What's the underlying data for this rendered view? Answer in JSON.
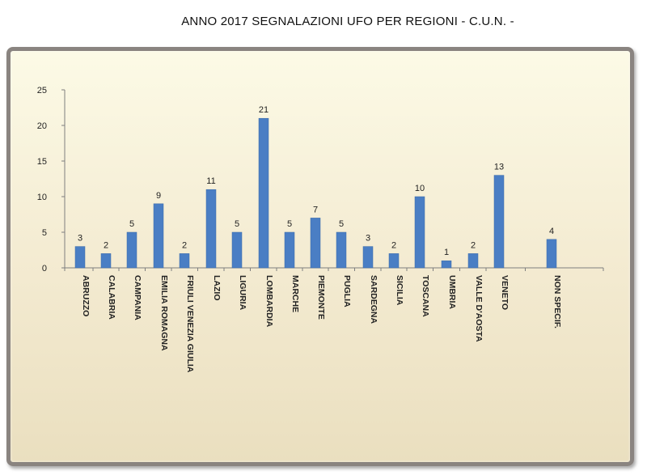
{
  "chart_data": {
    "type": "bar",
    "title": "ANNO 2017 SEGNALAZIONI UFO PER REGIONI - C.U.N. -",
    "xlabel": "",
    "ylabel": "",
    "ylim": [
      0,
      25
    ],
    "yticks": [
      "0",
      "5",
      "10",
      "15",
      "20",
      "25"
    ],
    "grid": false,
    "legend": "none",
    "bar_color": "#4a7ec4",
    "categories": [
      "ABRUZZO",
      "CALABRIA",
      "CAMPANIA",
      "EMILIA ROMAGNA",
      "FRIULI VENEZIA GIULIA",
      "LAZIO",
      "LIGURIA",
      "LOMBARDIA",
      "MARCHE",
      "PIEMONTE",
      "PUGLIA",
      "SARDEGNA",
      "SICILIA",
      "TOSCANA",
      "UMBRIA",
      "VALLE D'AOSTA",
      "VENETO",
      "NON SPECIF."
    ],
    "values": [
      3,
      2,
      5,
      9,
      2,
      11,
      5,
      21,
      5,
      7,
      5,
      3,
      2,
      10,
      1,
      2,
      13,
      4
    ]
  }
}
